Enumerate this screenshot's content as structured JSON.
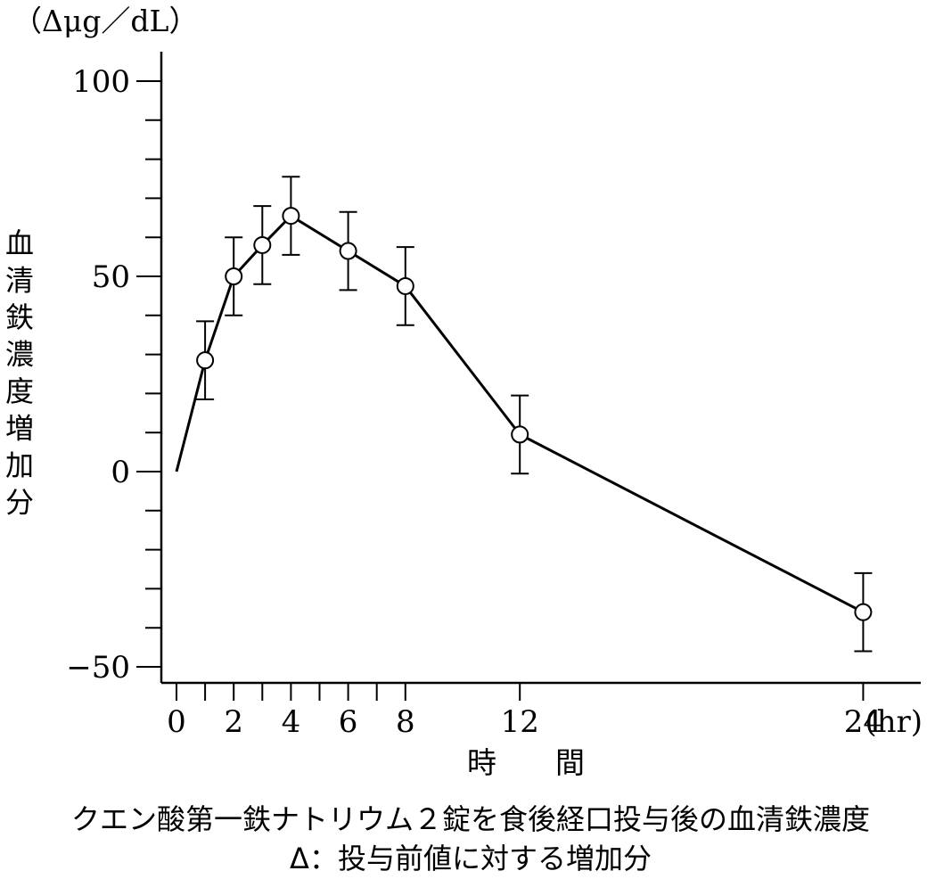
{
  "chart_data": {
    "type": "line",
    "unit_label": "（Δμg／dL）",
    "ylabel": "血清鉄濃度増加分",
    "xlabel": "時　　間",
    "x_unit": "(hr)",
    "ylim": [
      -55,
      100
    ],
    "xlim": [
      0,
      26
    ],
    "y_ticks": [
      100,
      50,
      0,
      -50
    ],
    "y_tick_labels": [
      "100",
      "50",
      "0",
      "−50"
    ],
    "y_minor_step": 10,
    "x_ticks": [
      0,
      1,
      2,
      3,
      4,
      5,
      6,
      7,
      8,
      12,
      24
    ],
    "x_tick_labels": [
      {
        "x": 0,
        "label": "0"
      },
      {
        "x": 2,
        "label": "2"
      },
      {
        "x": 4,
        "label": "4"
      },
      {
        "x": 6,
        "label": "6"
      },
      {
        "x": 8,
        "label": "8"
      },
      {
        "x": 12,
        "label": "12"
      },
      {
        "x": 24,
        "label": "24"
      }
    ],
    "series": [
      {
        "x": [
          0,
          1,
          2,
          3,
          4,
          6,
          8,
          12,
          24
        ],
        "y": [
          0,
          28.5,
          50,
          58,
          65.5,
          56.5,
          47.5,
          9.5,
          -36
        ],
        "error": [
          null,
          10,
          10,
          10,
          10,
          10,
          10,
          10,
          10
        ]
      }
    ],
    "caption_lines": [
      "クエン酸第一鉄ナトリウム２錠を食後経口投与後の血清鉄濃度",
      "Δ：投与前値に対する増加分"
    ]
  }
}
